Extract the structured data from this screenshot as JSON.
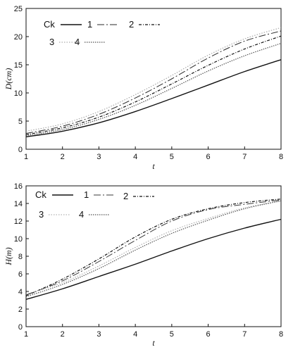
{
  "chart_data": [
    {
      "type": "line",
      "xlabel": "t",
      "ylabel": "D(cm)",
      "xlim": [
        1,
        8
      ],
      "ylim": [
        0,
        25
      ],
      "xticks": [
        1,
        2,
        3,
        4,
        5,
        6,
        7,
        8
      ],
      "yticks": [
        0,
        5,
        10,
        15,
        20,
        25
      ],
      "x": [
        1,
        2,
        3,
        4,
        5,
        6,
        7,
        8
      ],
      "legend": "top-left",
      "grid": false,
      "series": [
        {
          "name": "Ck",
          "values": [
            2.2,
            3.2,
            4.7,
            6.7,
            9.0,
            11.4,
            13.8,
            15.9
          ],
          "color": "#111111",
          "dash": "none",
          "width": 1.4
        },
        {
          "name": "1",
          "values": [
            2.8,
            4.1,
            6.2,
            9.1,
            12.5,
            16.2,
            19.2,
            21.0
          ],
          "color": "#2a2a2a",
          "dash": "10 3 2 3",
          "width": 1.0
        },
        {
          "name": "2",
          "values": [
            2.6,
            3.8,
            5.7,
            8.4,
            11.6,
            14.9,
            17.8,
            20.1
          ],
          "color": "#111111",
          "dash": "4 2 1 2",
          "width": 1.2
        },
        {
          "name": "3",
          "values": [
            3.2,
            4.5,
            6.7,
            9.7,
            13.1,
            16.7,
            19.6,
            21.6
          ],
          "color": "#9a9a9a",
          "dash": "1.5 2",
          "width": 1.0
        },
        {
          "name": "4",
          "values": [
            2.4,
            3.5,
            5.3,
            7.8,
            10.8,
            13.9,
            16.6,
            18.8
          ],
          "color": "#555555",
          "dash": "1.5 1.5",
          "width": 1.2
        }
      ]
    },
    {
      "type": "line",
      "xlabel": "t",
      "ylabel": "H(m)",
      "xlim": [
        1,
        8
      ],
      "ylim": [
        0,
        16
      ],
      "xticks": [
        1,
        2,
        3,
        4,
        5,
        6,
        7,
        8
      ],
      "yticks": [
        0,
        2,
        4,
        6,
        8,
        10,
        12,
        14,
        16
      ],
      "x": [
        1,
        2,
        3,
        4,
        5,
        6,
        7,
        8
      ],
      "legend": "top-left",
      "grid": false,
      "series": [
        {
          "name": "Ck",
          "values": [
            3.1,
            4.3,
            5.7,
            7.1,
            8.6,
            10.0,
            11.2,
            12.2
          ],
          "color": "#111111",
          "dash": "none",
          "width": 1.4
        },
        {
          "name": "1",
          "values": [
            3.6,
            5.2,
            7.4,
            9.8,
            12.0,
            13.3,
            13.9,
            14.4
          ],
          "color": "#3a3a3a",
          "dash": "10 3 2 3",
          "width": 1.0
        },
        {
          "name": "2",
          "values": [
            3.5,
            5.4,
            7.7,
            10.2,
            12.2,
            13.4,
            14.1,
            14.5
          ],
          "color": "#111111",
          "dash": "4 2 1 2",
          "width": 1.2
        },
        {
          "name": "3",
          "values": [
            3.7,
            5.0,
            6.9,
            9.0,
            10.9,
            12.3,
            13.5,
            14.3
          ],
          "color": "#a0a0a0",
          "dash": "1.5 2",
          "width": 1.0
        },
        {
          "name": "4",
          "values": [
            3.4,
            4.8,
            6.6,
            8.7,
            10.6,
            12.1,
            13.4,
            14.3
          ],
          "color": "#555555",
          "dash": "1.5 1.5",
          "width": 1.2
        }
      ]
    }
  ]
}
